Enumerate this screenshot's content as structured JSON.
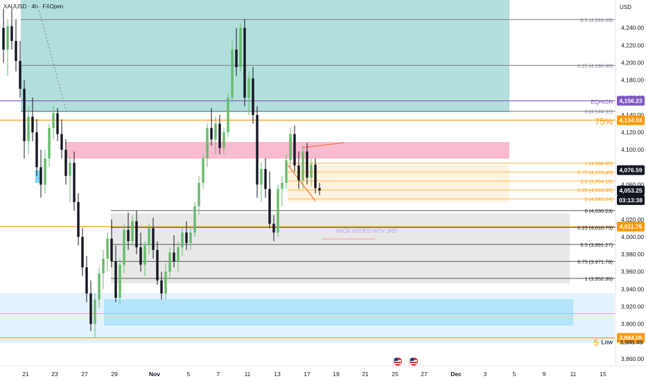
{
  "symbol_title": "XAUUSD · 4h · FXOpen",
  "currency": "USD",
  "chart_data": {
    "type": "candlestick",
    "y_axis": {
      "min": 3852,
      "max": 4272,
      "ticks": [
        "3,860.00",
        "3,880.00",
        "3,900.00",
        "3,920.00",
        "3,940.00",
        "3,960.00",
        "3,980.00",
        "4,000.00",
        "4,020.00",
        "4,040.00",
        "4,060.00",
        "4,080.00",
        "4,100.00",
        "4,120.00",
        "4,140.00",
        "4,160.00",
        "4,180.00",
        "4,200.00",
        "4,220.00",
        "4,240.00"
      ],
      "tick_values": [
        3860,
        3880,
        3900,
        3920,
        3940,
        3960,
        3980,
        4000,
        4020,
        4040,
        4060,
        4080,
        4100,
        4120,
        4140,
        4160,
        4180,
        4200,
        4220,
        4240
      ]
    },
    "x_axis": {
      "labels": [
        "21",
        "23",
        "27",
        "29",
        "Nov",
        "5",
        "7",
        "11",
        "13",
        "17",
        "19",
        "21",
        "25",
        "27",
        "Dec",
        "3",
        "5",
        "9",
        "11",
        "15"
      ],
      "bold_labels": [
        "Nov",
        "Dec"
      ]
    },
    "price_badges": [
      {
        "text": "4,156.23",
        "value": 4156.23,
        "color": "#7e57c2"
      },
      {
        "text": "4,134.03",
        "value": 4134.03,
        "color": "#ff9800"
      },
      {
        "text": "4,076.59",
        "value": 4076.59,
        "color": "#131722"
      },
      {
        "text": "4,053.25",
        "value": 4053.25,
        "color": "#131722"
      },
      {
        "text": "03:13:38",
        "value": 4042.2,
        "color": "#131722"
      },
      {
        "text": "4,011.76",
        "value": 4011.76,
        "color": "#ff9800"
      },
      {
        "text": "3,884.05",
        "value": 3884.05,
        "color": "#ff9800"
      }
    ],
    "annotations": {
      "eqhigh": "EQHIGH",
      "pct75": "75%",
      "five": "5",
      "low": "Low",
      "low_value": "3,886.49",
      "wick": "WICK ADDED NOV 3RD"
    },
    "fib_upper": [
      {
        "label": "0.5 (4,249.49)",
        "value": 4249.49
      },
      {
        "label": "0.25 (4,196.90)",
        "value": 4196.9
      },
      {
        "label": "0 (4,144.31)",
        "value": 4144.31
      }
    ],
    "fib_small": [
      {
        "label": "1 (4,084.65)",
        "value": 4084.65
      },
      {
        "label": "0.75 (4,074.40)",
        "value": 4074.4
      },
      {
        "label": "0.5 (4,064.15)",
        "value": 4064.15
      },
      {
        "label": "0.25 (4,053.89)",
        "value": 4053.89
      },
      {
        "label": "0 (4,043.64)",
        "value": 4043.64
      }
    ],
    "fib_lower": [
      {
        "label": "0 (4,030.23)",
        "value": 4030.23
      },
      {
        "label": "0.25 (4,010.75)",
        "value": 4010.75
      },
      {
        "label": "0.5 (3,991.27)",
        "value": 3991.27
      },
      {
        "label": "0.75 (3,971.78)",
        "value": 3971.78
      },
      {
        "label": "1 (3,952.30)",
        "value": 3952.3
      }
    ],
    "horizontal_levels": [
      {
        "name": "upper-75-level",
        "value": 4134.03,
        "color": "#ff9800"
      },
      {
        "name": "eqhigh-level",
        "value": 4156.23,
        "color": "#7e57c2"
      },
      {
        "name": "mid-orange-level",
        "value": 4011.76,
        "color": "#ff9800"
      },
      {
        "name": "low-orange-level",
        "value": 3884.05,
        "color": "#ff9800"
      },
      {
        "name": "low-blue-orange-level",
        "value": 3912,
        "color": "#ffb74d"
      }
    ],
    "candles": [
      [
        4240,
        4262,
        4200,
        4215
      ],
      [
        4215,
        4250,
        4185,
        4242
      ],
      [
        4242,
        4262,
        4215,
        4225
      ],
      [
        4225,
        4250,
        4190,
        4202
      ],
      [
        4202,
        4225,
        4160,
        4170
      ],
      [
        4170,
        4180,
        4090,
        4110
      ],
      [
        4110,
        4150,
        4095,
        4138
      ],
      [
        4138,
        4160,
        4110,
        4120
      ],
      [
        4120,
        4135,
        4070,
        4080
      ],
      [
        4080,
        4100,
        4045,
        4060
      ],
      [
        4060,
        4100,
        4050,
        4090
      ],
      [
        4090,
        4130,
        4080,
        4125
      ],
      [
        4125,
        4150,
        4112,
        4142
      ],
      [
        4142,
        4148,
        4110,
        4118
      ],
      [
        4118,
        4135,
        4090,
        4100
      ],
      [
        4100,
        4112,
        4060,
        4070
      ],
      [
        4070,
        4092,
        4040,
        4085
      ],
      [
        4085,
        4098,
        4030,
        4040
      ],
      [
        4040,
        4050,
        3990,
        4000
      ],
      [
        4000,
        4010,
        3955,
        3965
      ],
      [
        3965,
        3978,
        3925,
        3935
      ],
      [
        3935,
        3950,
        3892,
        3900
      ],
      [
        3900,
        3935,
        3885,
        3928
      ],
      [
        3928,
        3965,
        3918,
        3958
      ],
      [
        3958,
        3985,
        3940,
        3975
      ],
      [
        3975,
        4005,
        3960,
        3998
      ],
      [
        3998,
        4020,
        3965,
        3972
      ],
      [
        3972,
        3990,
        3925,
        3930
      ],
      [
        3930,
        3975,
        3922,
        3968
      ],
      [
        3968,
        4015,
        3958,
        4008
      ],
      [
        4008,
        4028,
        3985,
        3995
      ],
      [
        3995,
        4025,
        3990,
        4018
      ],
      [
        4018,
        4030,
        3980,
        3988
      ],
      [
        3988,
        4005,
        3960,
        3968
      ],
      [
        3968,
        3995,
        3955,
        3990
      ],
      [
        3990,
        4015,
        3980,
        4010
      ],
      [
        4010,
        4022,
        3975,
        3985
      ],
      [
        3985,
        3995,
        3945,
        3950
      ],
      [
        3950,
        3960,
        3928,
        3935
      ],
      [
        3935,
        3970,
        3928,
        3960
      ],
      [
        3960,
        3988,
        3952,
        3982
      ],
      [
        3982,
        4002,
        3965,
        3972
      ],
      [
        3972,
        3995,
        3960,
        3988
      ],
      [
        3988,
        4012,
        3978,
        4005
      ],
      [
        4005,
        4018,
        3985,
        3993
      ],
      [
        3993,
        4010,
        3985,
        4005
      ],
      [
        4005,
        4040,
        4000,
        4035
      ],
      [
        4035,
        4070,
        4025,
        4062
      ],
      [
        4062,
        4095,
        4055,
        4090
      ],
      [
        4090,
        4130,
        4080,
        4125
      ],
      [
        4125,
        4148,
        4105,
        4112
      ],
      [
        4112,
        4138,
        4095,
        4130
      ],
      [
        4130,
        4140,
        4095,
        4102
      ],
      [
        4102,
        4125,
        4095,
        4120
      ],
      [
        4120,
        4165,
        4115,
        4160
      ],
      [
        4160,
        4225,
        4155,
        4215
      ],
      [
        4215,
        4240,
        4185,
        4195
      ],
      [
        4195,
        4245,
        4190,
        4240
      ],
      [
        4240,
        4250,
        4150,
        4160
      ],
      [
        4160,
        4190,
        4140,
        4182
      ],
      [
        4182,
        4195,
        4130,
        4140
      ],
      [
        4140,
        4150,
        4045,
        4060
      ],
      [
        4060,
        4085,
        4040,
        4078
      ],
      [
        4078,
        4090,
        4045,
        4055
      ],
      [
        4055,
        4075,
        4010,
        4015
      ],
      [
        4015,
        4025,
        3995,
        4005
      ],
      [
        4005,
        4060,
        4000,
        4055
      ],
      [
        4055,
        4070,
        4035,
        4062
      ],
      [
        4062,
        4095,
        4055,
        4088
      ],
      [
        4088,
        4125,
        4080,
        4118
      ],
      [
        4118,
        4128,
        4075,
        4082
      ],
      [
        4082,
        4098,
        4055,
        4065
      ],
      [
        4065,
        4105,
        4055,
        4098
      ],
      [
        4098,
        4108,
        4060,
        4068
      ],
      [
        4068,
        4090,
        4058,
        4083
      ],
      [
        4083,
        4090,
        4050,
        4056
      ],
      [
        4056,
        4062,
        4048,
        4053.25
      ]
    ]
  }
}
